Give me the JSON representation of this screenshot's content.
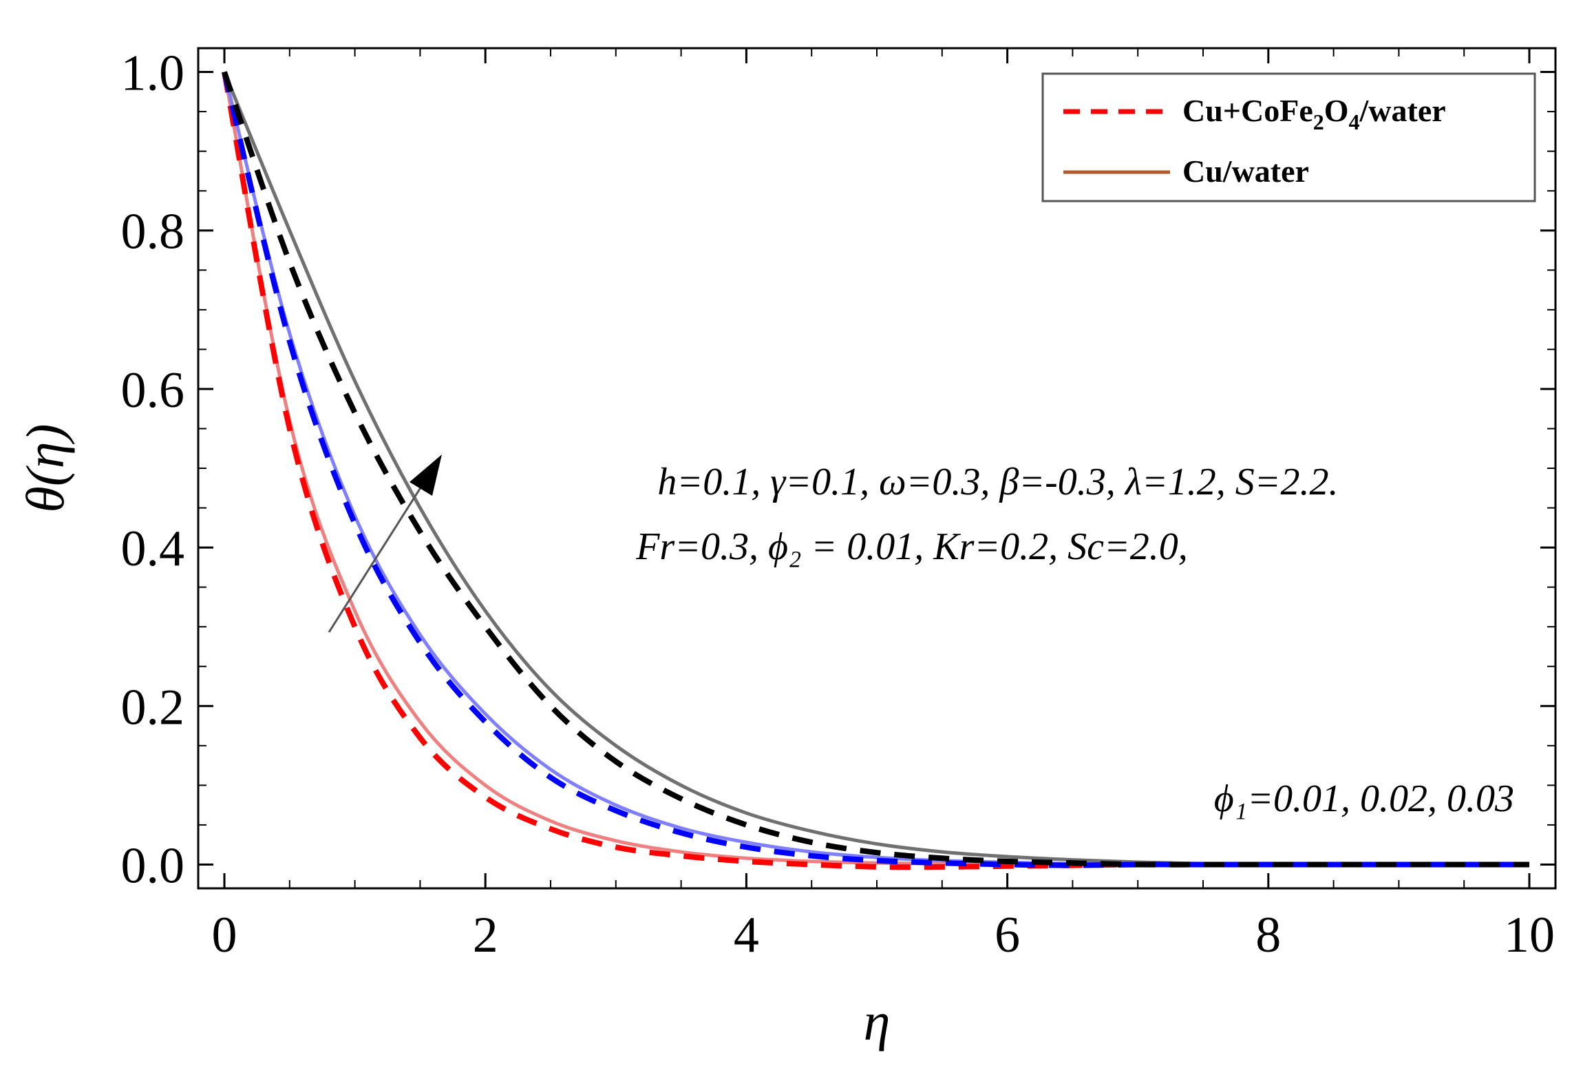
{
  "chart_data": {
    "type": "line",
    "title": "",
    "xlabel": "η",
    "ylabel": "θ(η)",
    "xlim": [
      0,
      10
    ],
    "ylim": [
      -0.03,
      1.03
    ],
    "x_ticks": [
      "0",
      "2",
      "4",
      "6",
      "8",
      "10"
    ],
    "y_ticks": [
      "0.0",
      "0.2",
      "0.4",
      "0.6",
      "0.8",
      "1.0"
    ],
    "x": [
      0,
      0.5,
      1,
      1.5,
      2,
      2.5,
      3,
      3.5,
      4,
      4.5,
      5,
      5.5,
      6,
      6.5,
      7,
      7.5,
      8,
      8.5,
      9,
      9.5,
      10
    ],
    "series": [
      {
        "name": "Cu+CoFe2O4/water, φ1=0.01",
        "style": "dashed",
        "color": "#ff0000",
        "values": [
          1.0,
          0.55,
          0.3,
          0.16,
          0.085,
          0.045,
          0.022,
          0.011,
          0.004,
          0.0,
          -0.003,
          -0.003,
          -0.002,
          -0.001,
          0.0,
          0.0,
          0.0,
          0.0,
          0.0,
          0.0,
          0.0
        ]
      },
      {
        "name": "Cu/water, φ1=0.01",
        "style": "solid",
        "color": "#f08080",
        "values": [
          1.0,
          0.56,
          0.32,
          0.18,
          0.1,
          0.055,
          0.03,
          0.016,
          0.008,
          0.004,
          0.002,
          0.001,
          0.0,
          0.0,
          0.0,
          0.0,
          0.0,
          0.0,
          0.0,
          0.0,
          0.0
        ]
      },
      {
        "name": "Cu+CoFe2O4/water, φ1=0.02",
        "style": "dashed",
        "color": "#0000ff",
        "values": [
          1.0,
          0.66,
          0.43,
          0.28,
          0.18,
          0.11,
          0.068,
          0.04,
          0.022,
          0.011,
          0.005,
          0.002,
          0.0,
          -0.001,
          0.0,
          0.0,
          0.0,
          0.0,
          0.0,
          0.0,
          0.0
        ]
      },
      {
        "name": "Cu/water, φ1=0.02",
        "style": "solid",
        "color": "#8080ff",
        "values": [
          1.0,
          0.67,
          0.44,
          0.29,
          0.19,
          0.12,
          0.075,
          0.046,
          0.028,
          0.016,
          0.009,
          0.005,
          0.003,
          0.001,
          0.0,
          0.0,
          0.0,
          0.0,
          0.0,
          0.0,
          0.0
        ]
      },
      {
        "name": "Cu+CoFe2O4/water, φ1=0.03",
        "style": "dashed",
        "color": "#000000",
        "values": [
          1.0,
          0.76,
          0.57,
          0.42,
          0.3,
          0.2,
          0.13,
          0.083,
          0.05,
          0.028,
          0.015,
          0.008,
          0.004,
          0.002,
          0.0,
          0.0,
          0.0,
          0.0,
          0.0,
          0.0,
          0.0
        ]
      },
      {
        "name": "Cu/water, φ1=0.03",
        "style": "solid",
        "color": "#707070",
        "values": [
          1.0,
          0.8,
          0.61,
          0.45,
          0.32,
          0.22,
          0.15,
          0.1,
          0.065,
          0.042,
          0.026,
          0.016,
          0.01,
          0.006,
          0.003,
          0.001,
          0.0,
          0.0,
          0.0,
          0.0,
          0.0
        ]
      }
    ],
    "legend": {
      "placement": "top-right",
      "entries": [
        {
          "label": "Cu+CoFe",
          "sub1": "2",
          "mid": "O",
          "sub2": "4",
          "tail": "/water",
          "style": "dashed",
          "color": "#ff0000"
        },
        {
          "label": "Cu/water",
          "style": "solid",
          "color": "#b05a30"
        }
      ]
    },
    "annotations": {
      "params_line1": "h=0.1, γ=0.1, ω=0.3, β=-0.3, λ=1.2, S=2.2.",
      "params_line2": "Fr=0.3, ϕ₂ = 0.01, Kr=0.2, Sc=2.0,",
      "phi_values": "ϕ₁=0.01, 0.02, 0.03",
      "arrow": "increasing ϕ₁"
    }
  }
}
